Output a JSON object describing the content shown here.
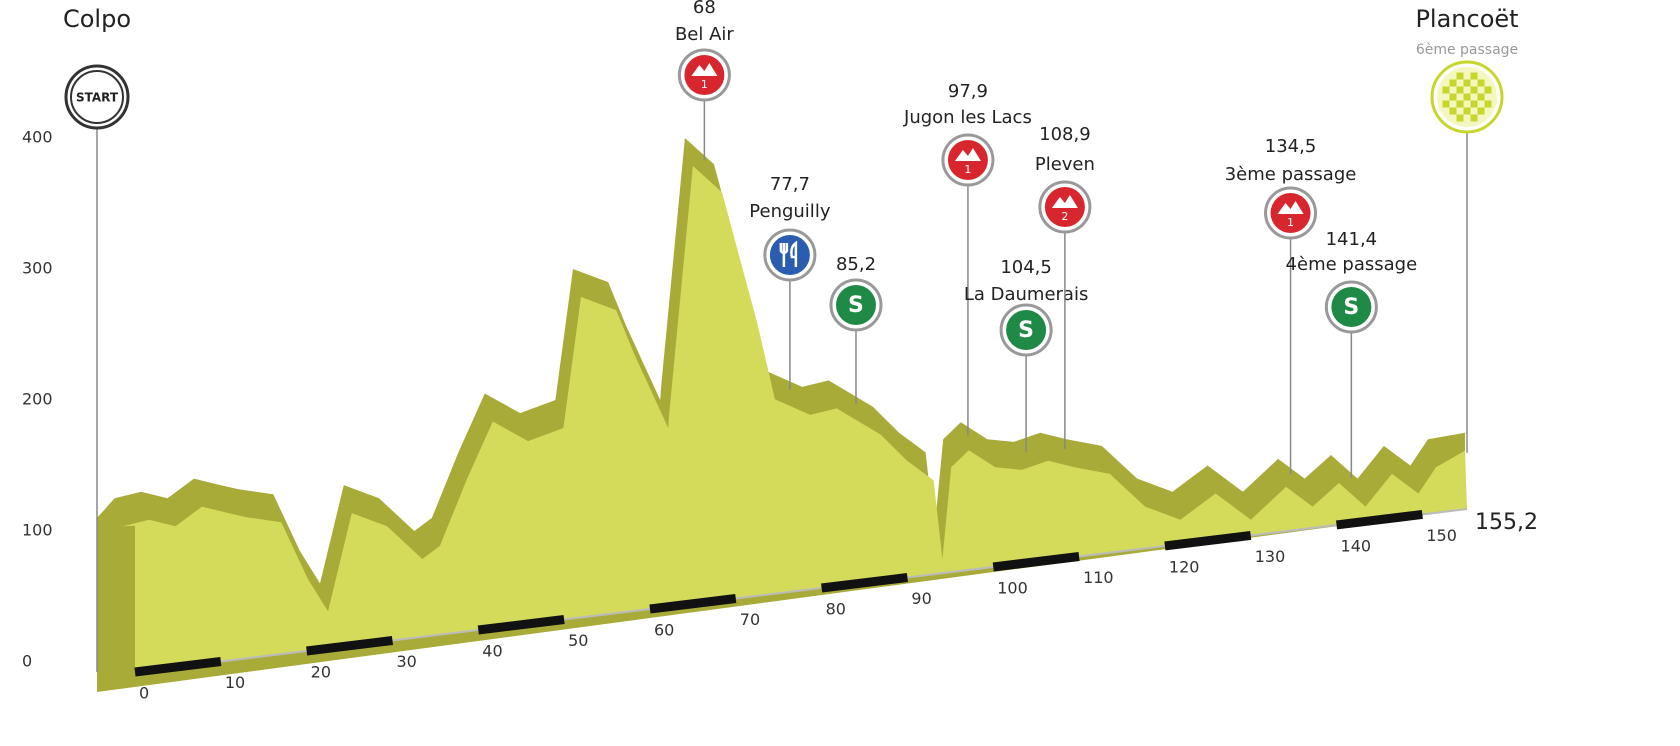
{
  "chart_data": {
    "type": "area",
    "x": [
      0,
      2,
      5,
      8,
      11,
      14,
      16,
      20,
      23,
      25.3,
      28,
      32,
      36,
      38,
      41,
      44,
      48,
      52,
      54,
      58,
      60,
      63.9,
      64,
      66.7,
      70,
      74,
      76,
      80,
      83,
      88,
      91,
      94,
      95,
      96,
      98,
      101,
      104,
      107,
      110,
      114,
      118,
      122,
      126,
      130,
      134,
      137,
      140,
      143,
      146,
      149,
      151,
      155.2
    ],
    "values": [
      110,
      125,
      130,
      125,
      140,
      135,
      132,
      128,
      85,
      60,
      135,
      125,
      100,
      110,
      160,
      205,
      190,
      200,
      300,
      290,
      257,
      200,
      210,
      400,
      380,
      280,
      222,
      210,
      215,
      195,
      175,
      160,
      100,
      170,
      183,
      170,
      168,
      175,
      170,
      165,
      140,
      130,
      150,
      130,
      155,
      140,
      158,
      140,
      165,
      150,
      170,
      175
    ],
    "color": "#d4da5a",
    "top_color": "#a9ab38",
    "xlim": [
      0,
      155.2
    ],
    "ylim": [
      0,
      400
    ],
    "yticks": [
      0,
      100,
      200,
      300,
      400
    ],
    "xticks": [
      0,
      10,
      20,
      30,
      40,
      50,
      60,
      70,
      80,
      90,
      100,
      110,
      120,
      130,
      140,
      150
    ],
    "distance": {
      "value": 155.2,
      "label": "155,2"
    },
    "markers": [
      {
        "kind": "start",
        "km": 0,
        "name": "Colpo",
        "symbol": "START"
      },
      {
        "kind": "climb",
        "km": 68,
        "name": "Bel Air",
        "category": 1
      },
      {
        "kind": "feed",
        "km": {
          "value": 77.7,
          "label": "77,7"
        },
        "name": "Penguilly"
      },
      {
        "kind": "sprint",
        "km": {
          "value": 85.2,
          "label": "85,2"
        },
        "symbol": "S"
      },
      {
        "kind": "climb",
        "km": {
          "value": 97.9,
          "label": "97,9"
        },
        "name": "Jugon les Lacs",
        "category": 1
      },
      {
        "kind": "sprint",
        "km": {
          "value": 104.5,
          "label": "104,5"
        },
        "name": "La Daumerais",
        "symbol": "S"
      },
      {
        "kind": "climb",
        "km": {
          "value": 108.9,
          "label": "108,9"
        },
        "name": "Pleven",
        "category": 2
      },
      {
        "kind": "climb",
        "km": {
          "value": 134.5,
          "label": "134,5"
        },
        "name": "3ème passage",
        "category": 1
      },
      {
        "kind": "sprint",
        "km": {
          "value": 141.4,
          "label": "141,4"
        },
        "name": "4ème passage",
        "symbol": "S"
      },
      {
        "kind": "finish",
        "km": {
          "value": 155.2,
          "label": "155,2"
        },
        "name": "Plancoët",
        "note": "6ème passage"
      }
    ]
  }
}
